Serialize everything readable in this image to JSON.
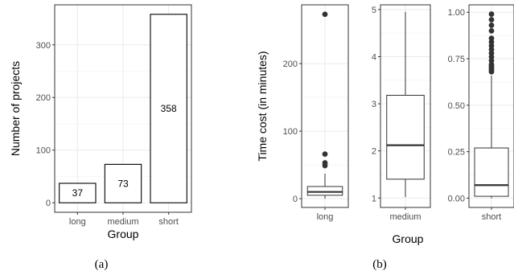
{
  "chart_data": [
    {
      "type": "bar",
      "caption": "(a)",
      "categories": [
        "long",
        "medium",
        "short"
      ],
      "values": [
        37,
        73,
        358
      ],
      "data_labels": [
        "37",
        "73",
        "358"
      ],
      "xlabel": "Group",
      "ylabel": "Number of projects",
      "ylim": [
        -18,
        376
      ],
      "yticks": [
        0,
        100,
        200,
        300
      ],
      "grid": true
    },
    {
      "type": "box",
      "caption": "(b)",
      "xlabel": "Group",
      "ylabel": "Time cost (in minutes)",
      "grid": true,
      "facets": [
        {
          "category": "long",
          "ylim": [
            -13,
            287
          ],
          "yticks": [
            0,
            100,
            200
          ],
          "box": {
            "q1": 5,
            "median": 10,
            "q3": 18,
            "whisker_low": 0,
            "whisker_high": 37
          },
          "outliers": [
            49,
            53,
            66,
            273
          ]
        },
        {
          "category": "medium",
          "ylim": [
            0.8,
            5.1
          ],
          "yticks": [
            1,
            2,
            3,
            4,
            5
          ],
          "box": {
            "q1": 1.4,
            "median": 2.12,
            "q3": 3.18,
            "whisker_low": 1.02,
            "whisker_high": 4.95
          },
          "outliers": []
        },
        {
          "category": "short",
          "ylim": [
            -0.05,
            1.04
          ],
          "yticks": [
            0.0,
            0.25,
            0.5,
            0.75,
            1.0
          ],
          "ytick_labels": [
            "0.00",
            "0.25",
            "0.50",
            "0.75",
            "1.00"
          ],
          "box": {
            "q1": 0.01,
            "median": 0.07,
            "q3": 0.27,
            "whisker_low": 0.0,
            "whisker_high": 0.66
          },
          "outliers": [
            0.68,
            0.69,
            0.7,
            0.71,
            0.72,
            0.74,
            0.76,
            0.78,
            0.8,
            0.82,
            0.84,
            0.86,
            0.9,
            0.93,
            0.96,
            0.99
          ]
        }
      ]
    }
  ]
}
